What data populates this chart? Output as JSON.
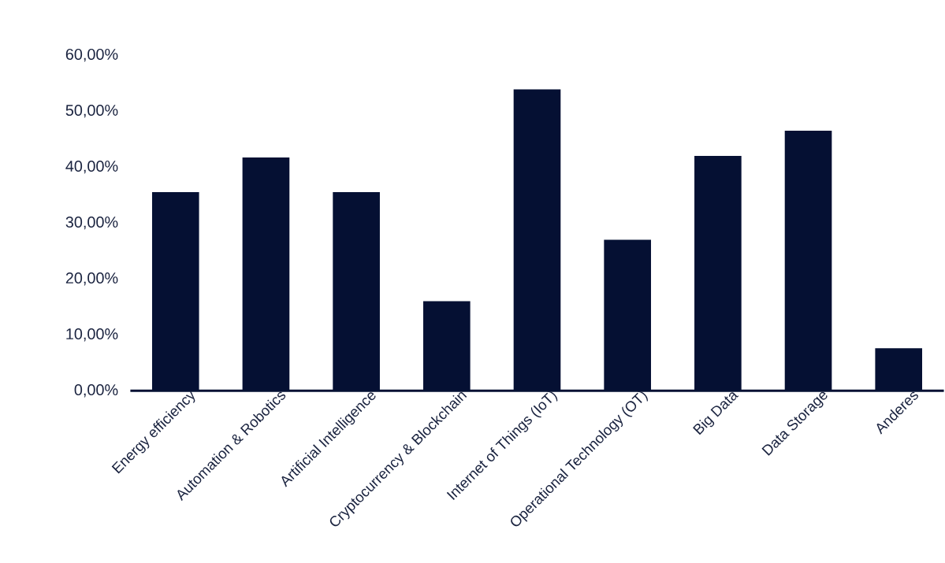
{
  "chart_data": {
    "type": "bar",
    "categories": [
      "Energy efficiency",
      "Automation & Robotics",
      "Artificial Intelligence",
      "Cryptocurrency & Blockchain",
      "Internet of Things (IoT)",
      "Operational Technology (OT)",
      "Big Data",
      "Data Storage",
      "Anderes"
    ],
    "values": [
      35.5,
      41.7,
      35.5,
      16.0,
      53.9,
      27.0,
      42.0,
      46.5,
      7.6
    ],
    "color": "#051033",
    "ylim": [
      0,
      60
    ],
    "yticks": [
      {
        "value": 0,
        "label": "0,00%"
      },
      {
        "value": 10,
        "label": "10,00%"
      },
      {
        "value": 20,
        "label": "20,00%"
      },
      {
        "value": 30,
        "label": "30,00%"
      },
      {
        "value": 40,
        "label": "40,00%"
      },
      {
        "value": 50,
        "label": "50,00%"
      },
      {
        "value": 60,
        "label": "60,00%"
      }
    ]
  }
}
